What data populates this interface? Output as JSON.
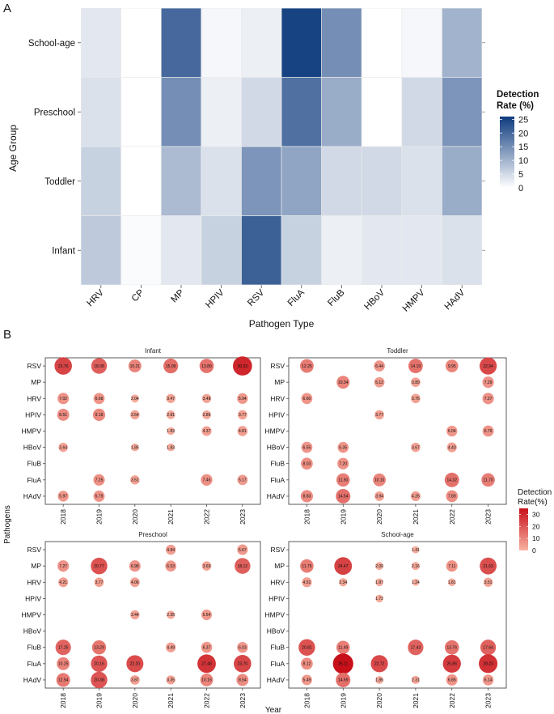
{
  "panel_labels": {
    "a": "A",
    "b": "B"
  },
  "chart_data": [
    {
      "type": "heatmap",
      "title": "",
      "xlabel": "Pathogen Type",
      "ylabel": "Age Group",
      "x_categories": [
        "HRV",
        "CP",
        "MP",
        "HPIV",
        "RSV",
        "FluA",
        "FluB",
        "HBoV",
        "HMPV",
        "HAdV"
      ],
      "y_categories": [
        "School-age",
        "Preschool",
        "Toddler",
        "Infant"
      ],
      "values": [
        [
          3,
          0,
          20,
          1,
          2,
          25,
          15,
          0,
          1,
          10
        ],
        [
          4,
          0,
          15,
          2,
          5,
          19,
          11,
          0,
          5,
          14
        ],
        [
          6,
          0,
          9,
          4,
          14,
          12,
          5,
          5,
          4,
          11
        ],
        [
          7,
          0.5,
          3,
          6,
          21,
          6,
          2,
          3,
          3,
          4
        ]
      ],
      "legend": {
        "title_line1": "Detection",
        "title_line2": "Rate (%)",
        "ticks": [
          "25",
          "20",
          "15",
          "10",
          "5",
          "0"
        ],
        "range": [
          0,
          26
        ],
        "low_color": "#ffffff",
        "high_color": "#0e3b7e"
      }
    },
    {
      "type": "scatter",
      "title": "",
      "xlabel": "Year",
      "ylabel": "Pathogens",
      "years": [
        "2018",
        "2019",
        "2020",
        "2021",
        "2022",
        "2023"
      ],
      "legend": {
        "title_line1": "Detection",
        "title_line2": "Rate(%)",
        "ticks": [
          "30",
          "20",
          "10",
          "0"
        ],
        "range": [
          0,
          35
        ],
        "low_color": "#f8b3a2",
        "high_color": "#c8101a"
      },
      "facets": [
        {
          "title": "Infant",
          "pathogens": [
            "RSV",
            "MP",
            "HRV",
            "HPIV",
            "HMPV",
            "HBoV",
            "FluB",
            "FluA",
            "HAdV"
          ],
          "points": [
            {
              "p": "RSV",
              "y": "2018",
              "v": 23.76,
              "label": "23.76"
            },
            {
              "p": "RSV",
              "y": "2019",
              "v": 18.08,
              "label": "18.08"
            },
            {
              "p": "RSV",
              "y": "2020",
              "v": 10.21,
              "label": "10.21"
            },
            {
              "p": "RSV",
              "y": "2021",
              "v": 15.09,
              "label": "15.09"
            },
            {
              "p": "RSV",
              "y": "2022",
              "v": 13.89,
              "label": "13.89"
            },
            {
              "p": "RSV",
              "y": "2023",
              "v": 30.33,
              "label": "30.33"
            },
            {
              "p": "HRV",
              "y": "2018",
              "v": 7.02,
              "label": "7.02"
            },
            {
              "p": "HRV",
              "y": "2019",
              "v": 6.68,
              "label": "6.68"
            },
            {
              "p": "HRV",
              "y": "2020",
              "v": 2.04,
              "label": "2.04"
            },
            {
              "p": "HRV",
              "y": "2021",
              "v": 3.47,
              "label": "3.47"
            },
            {
              "p": "HRV",
              "y": "2022",
              "v": 3.48,
              "label": "3.48"
            },
            {
              "p": "HRV",
              "y": "2023",
              "v": 5.94,
              "label": "5.94"
            },
            {
              "p": "HPIV",
              "y": "2018",
              "v": 8.51,
              "label": "8.51"
            },
            {
              "p": "HPIV",
              "y": "2019",
              "v": 9.18,
              "label": "9.18"
            },
            {
              "p": "HPIV",
              "y": "2020",
              "v": 3.54,
              "label": "3.54"
            },
            {
              "p": "HPIV",
              "y": "2021",
              "v": 2.81,
              "label": "2.81"
            },
            {
              "p": "HPIV",
              "y": "2022",
              "v": 2.86,
              "label": "2.86"
            },
            {
              "p": "HPIV",
              "y": "2023",
              "v": 3.77,
              "label": "3.77"
            },
            {
              "p": "HMPV",
              "y": "2021",
              "v": 1.83,
              "label": "1.83"
            },
            {
              "p": "HMPV",
              "y": "2022",
              "v": 4.37,
              "label": "4.37"
            },
            {
              "p": "HMPV",
              "y": "2023",
              "v": 4.81,
              "label": "4.81"
            },
            {
              "p": "HBoV",
              "y": "2018",
              "v": 3.64,
              "label": "3.64"
            },
            {
              "p": "HBoV",
              "y": "2020",
              "v": 1.85,
              "label": "1.85"
            },
            {
              "p": "HBoV",
              "y": "2021",
              "v": 1.83,
              "label": "1.83"
            },
            {
              "p": "FluA",
              "y": "2019",
              "v": 7.25,
              "label": "7.25"
            },
            {
              "p": "FluA",
              "y": "2020",
              "v": 3.51,
              "label": "3.51"
            },
            {
              "p": "FluA",
              "y": "2022",
              "v": 7.46,
              "label": "7.46"
            },
            {
              "p": "FluA",
              "y": "2023",
              "v": 5.17,
              "label": "5.17"
            },
            {
              "p": "HAdV",
              "y": "2018",
              "v": 5.97,
              "label": "5.97"
            },
            {
              "p": "HAdV",
              "y": "2019",
              "v": 6.79,
              "label": "6.79"
            }
          ]
        },
        {
          "title": "Toddler",
          "pathogens": [
            "RSV",
            "MP",
            "HRV",
            "HPIV",
            "HMPV",
            "HBoV",
            "FluB",
            "FluA",
            "HAdV"
          ],
          "points": [
            {
              "p": "RSV",
              "y": "2018",
              "v": 12.25,
              "label": "12.25"
            },
            {
              "p": "RSV",
              "y": "2020",
              "v": 6.44,
              "label": "6.44"
            },
            {
              "p": "RSV",
              "y": "2021",
              "v": 14.19,
              "label": "14.19"
            },
            {
              "p": "RSV",
              "y": "2022",
              "v": 9.95,
              "label": "9.95"
            },
            {
              "p": "RSV",
              "y": "2023",
              "v": 22.94,
              "label": "22.94"
            },
            {
              "p": "MP",
              "y": "2019",
              "v": 10.34,
              "label": "10.34"
            },
            {
              "p": "MP",
              "y": "2020",
              "v": 5.12,
              "label": "5.12"
            },
            {
              "p": "MP",
              "y": "2021",
              "v": 3.89,
              "label": "3.89"
            },
            {
              "p": "MP",
              "y": "2023",
              "v": 7.29,
              "label": "7.29"
            },
            {
              "p": "HRV",
              "y": "2018",
              "v": 6.6,
              "label": "6.60"
            },
            {
              "p": "HRV",
              "y": "2021",
              "v": 3.75,
              "label": "3.75"
            },
            {
              "p": "HRV",
              "y": "2023",
              "v": 7.27,
              "label": "7.27"
            },
            {
              "p": "HPIV",
              "y": "2020",
              "v": 3.77,
              "label": "3.77"
            },
            {
              "p": "HMPV",
              "y": "2022",
              "v": 6.04,
              "label": "6.04"
            },
            {
              "p": "HMPV",
              "y": "2023",
              "v": 6.79,
              "label": "6.79"
            },
            {
              "p": "HBoV",
              "y": "2018",
              "v": 6.55,
              "label": "6.55"
            },
            {
              "p": "HBoV",
              "y": "2019",
              "v": 6.35,
              "label": "6.35"
            },
            {
              "p": "HBoV",
              "y": "2021",
              "v": 3.67,
              "label": "3.67"
            },
            {
              "p": "HBoV",
              "y": "2022",
              "v": 4.4,
              "label": "4.40"
            },
            {
              "p": "FluB",
              "y": "2018",
              "v": 8.03,
              "label": "8.03"
            },
            {
              "p": "FluB",
              "y": "2019",
              "v": 7.2,
              "label": "7.20"
            },
            {
              "p": "FluA",
              "y": "2019",
              "v": 11.5,
              "label": "11.50"
            },
            {
              "p": "FluA",
              "y": "2020",
              "v": 10.1,
              "label": "10.10"
            },
            {
              "p": "FluA",
              "y": "2022",
              "v": 14.32,
              "label": "14.32"
            },
            {
              "p": "FluA",
              "y": "2023",
              "v": 11.7,
              "label": "11.70"
            },
            {
              "p": "HAdV",
              "y": "2018",
              "v": 8.83,
              "label": "8.83"
            },
            {
              "p": "HAdV",
              "y": "2019",
              "v": 14.54,
              "label": "14.54"
            },
            {
              "p": "HAdV",
              "y": "2020",
              "v": 3.94,
              "label": "3.94"
            },
            {
              "p": "HAdV",
              "y": "2021",
              "v": 4.26,
              "label": "4.26"
            },
            {
              "p": "HAdV",
              "y": "2022",
              "v": 7.89,
              "label": "7.89"
            }
          ]
        },
        {
          "title": "Preschool",
          "pathogens": [
            "RSV",
            "MP",
            "HRV",
            "HPIV",
            "HMPV",
            "HBoV",
            "FluB",
            "FluA",
            "HAdV"
          ],
          "points": [
            {
              "p": "RSV",
              "y": "2021",
              "v": 4.84,
              "label": "4.84"
            },
            {
              "p": "RSV",
              "y": "2023",
              "v": 5.67,
              "label": "5.67"
            },
            {
              "p": "MP",
              "y": "2018",
              "v": 7.27,
              "label": "7.27"
            },
            {
              "p": "MP",
              "y": "2019",
              "v": 20.77,
              "label": "20.77"
            },
            {
              "p": "MP",
              "y": "2020",
              "v": 6.98,
              "label": "6.98"
            },
            {
              "p": "MP",
              "y": "2021",
              "v": 6.53,
              "label": "6.53"
            },
            {
              "p": "MP",
              "y": "2022",
              "v": 3.69,
              "label": "3.69"
            },
            {
              "p": "MP",
              "y": "2023",
              "v": 18.12,
              "label": "18.12"
            },
            {
              "p": "HRV",
              "y": "2018",
              "v": 4.21,
              "label": "4.21"
            },
            {
              "p": "HRV",
              "y": "2019",
              "v": 3.77,
              "label": "3.77"
            },
            {
              "p": "HRV",
              "y": "2020",
              "v": 4.06,
              "label": "4.06"
            },
            {
              "p": "HMPV",
              "y": "2020",
              "v": 3.44,
              "label": "3.44"
            },
            {
              "p": "HMPV",
              "y": "2021",
              "v": 2.35,
              "label": "2.35"
            },
            {
              "p": "HMPV",
              "y": "2022",
              "v": 5.54,
              "label": "5.54"
            },
            {
              "p": "FluB",
              "y": "2018",
              "v": 17.25,
              "label": "17.25"
            },
            {
              "p": "FluB",
              "y": "2019",
              "v": 13.29,
              "label": "13.29"
            },
            {
              "p": "FluB",
              "y": "2021",
              "v": 4.49,
              "label": "4.49"
            },
            {
              "p": "FluB",
              "y": "2022",
              "v": 6.37,
              "label": "6.37"
            },
            {
              "p": "FluB",
              "y": "2023",
              "v": 6.03,
              "label": "6.03"
            },
            {
              "p": "FluA",
              "y": "2018",
              "v": 10.25,
              "label": "10.25"
            },
            {
              "p": "FluA",
              "y": "2019",
              "v": 20.16,
              "label": "20.16"
            },
            {
              "p": "FluA",
              "y": "2020",
              "v": 22.2,
              "label": "22.20"
            },
            {
              "p": "FluA",
              "y": "2022",
              "v": 27.48,
              "label": "27.48"
            },
            {
              "p": "FluA",
              "y": "2023",
              "v": 23.7,
              "label": "23.70"
            },
            {
              "p": "HAdV",
              "y": "2018",
              "v": 12.54,
              "label": "12.54"
            },
            {
              "p": "HAdV",
              "y": "2019",
              "v": 20.38,
              "label": "20.38"
            },
            {
              "p": "HAdV",
              "y": "2020",
              "v": 3.87,
              "label": "3.87"
            },
            {
              "p": "HAdV",
              "y": "2021",
              "v": 3.35,
              "label": "3.35"
            },
            {
              "p": "HAdV",
              "y": "2022",
              "v": 10.16,
              "label": "10.16"
            },
            {
              "p": "HAdV",
              "y": "2023",
              "v": 8.54,
              "label": "8.54"
            }
          ]
        },
        {
          "title": "School-age",
          "pathogens": [
            "RSV",
            "MP",
            "HRV",
            "HPIV",
            "HMPV",
            "HBoV",
            "FluB",
            "FluA",
            "HAdV"
          ],
          "points": [
            {
              "p": "RSV",
              "y": "2021",
              "v": 1.41,
              "label": "1.41"
            },
            {
              "p": "MP",
              "y": "2018",
              "v": 11.75,
              "label": "11.75"
            },
            {
              "p": "MP",
              "y": "2019",
              "v": 24.47,
              "label": "24.47"
            },
            {
              "p": "MP",
              "y": "2020",
              "v": 2.0,
              "label": "2.00"
            },
            {
              "p": "MP",
              "y": "2021",
              "v": 2.16,
              "label": "2.16"
            },
            {
              "p": "MP",
              "y": "2022",
              "v": 7.11,
              "label": "7.11"
            },
            {
              "p": "MP",
              "y": "2023",
              "v": 21.63,
              "label": "21.63"
            },
            {
              "p": "HRV",
              "y": "2018",
              "v": 4.51,
              "label": "4.51"
            },
            {
              "p": "HRV",
              "y": "2019",
              "v": 2.34,
              "label": "2.34"
            },
            {
              "p": "HRV",
              "y": "2020",
              "v": 1.87,
              "label": "1.87"
            },
            {
              "p": "HRV",
              "y": "2021",
              "v": 1.24,
              "label": "1.24"
            },
            {
              "p": "HRV",
              "y": "2022",
              "v": 1.81,
              "label": "1.81"
            },
            {
              "p": "HRV",
              "y": "2023",
              "v": 3.51,
              "label": "3.51"
            },
            {
              "p": "HPIV",
              "y": "2020",
              "v": 1.72,
              "label": "1.72"
            },
            {
              "p": "FluB",
              "y": "2018",
              "v": 20.81,
              "label": "20.81"
            },
            {
              "p": "FluB",
              "y": "2019",
              "v": 11.49,
              "label": "11.49"
            },
            {
              "p": "FluB",
              "y": "2021",
              "v": 17.43,
              "label": "17.43"
            },
            {
              "p": "FluB",
              "y": "2022",
              "v": 13.76,
              "label": "13.76"
            },
            {
              "p": "FluB",
              "y": "2023",
              "v": 17.64,
              "label": "17.64"
            },
            {
              "p": "FluA",
              "y": "2018",
              "v": 8.12,
              "label": "8.12"
            },
            {
              "p": "FluA",
              "y": "2019",
              "v": 35.11,
              "label": "35.11"
            },
            {
              "p": "FluA",
              "y": "2020",
              "v": 22.72,
              "label": "22.72"
            },
            {
              "p": "FluA",
              "y": "2022",
              "v": 25.86,
              "label": "25.86"
            },
            {
              "p": "FluA",
              "y": "2023",
              "v": 28.23,
              "label": "28.23"
            },
            {
              "p": "HAdV",
              "y": "2018",
              "v": 5.49,
              "label": "5.49"
            },
            {
              "p": "HAdV",
              "y": "2019",
              "v": 14.69,
              "label": "14.69"
            },
            {
              "p": "HAdV",
              "y": "2020",
              "v": 1.86,
              "label": "1.86"
            },
            {
              "p": "HAdV",
              "y": "2021",
              "v": 2.31,
              "label": "2.31"
            },
            {
              "p": "HAdV",
              "y": "2022",
              "v": 6.86,
              "label": "6.86"
            },
            {
              "p": "HAdV",
              "y": "2023",
              "v": 6.14,
              "label": "6.14"
            }
          ]
        }
      ]
    }
  ]
}
